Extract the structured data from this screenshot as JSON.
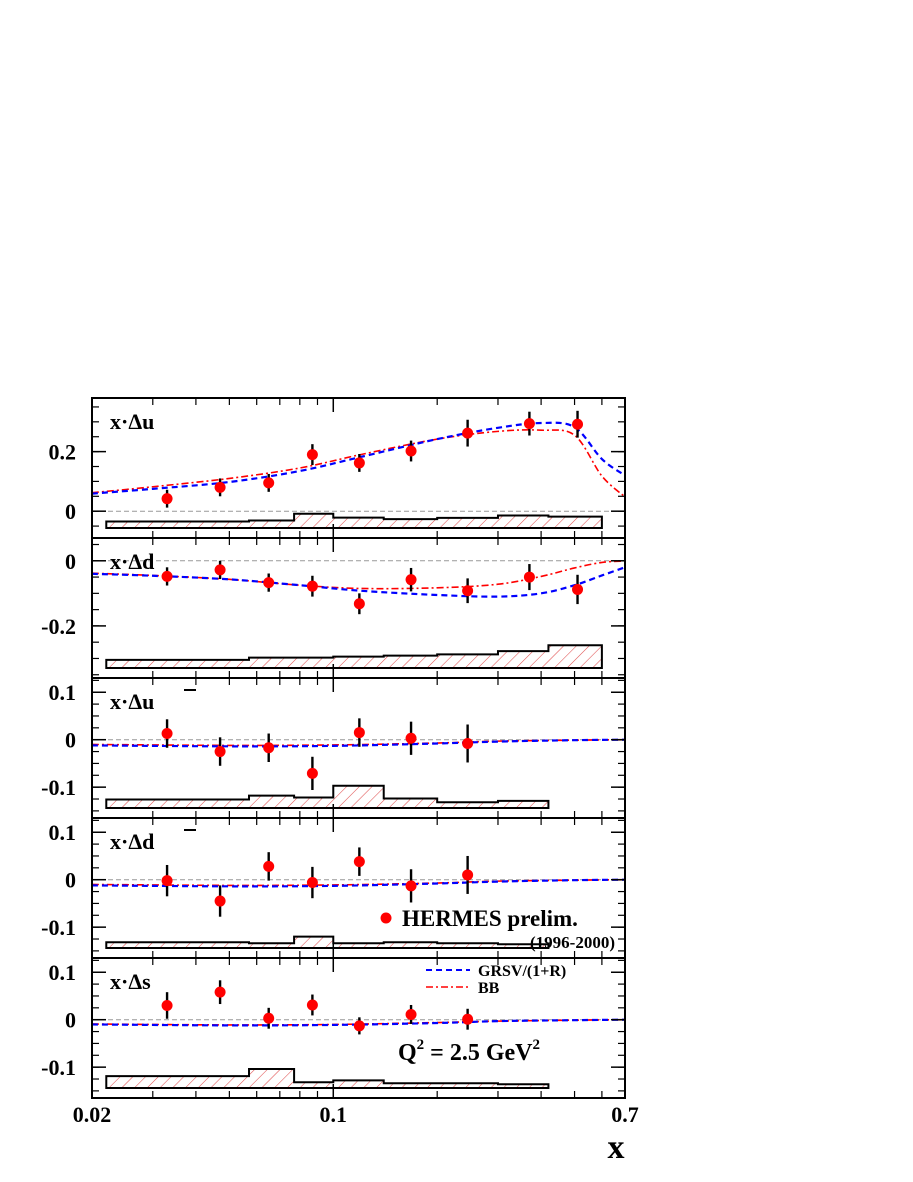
{
  "chart_data": {
    "type": "scatter",
    "xscale": "log",
    "xlim": [
      0.02,
      0.7
    ],
    "xlabel": "x",
    "x_ticks": [
      0.02,
      0.1,
      0.7
    ],
    "x_tick_labels": [
      "0.02",
      "0.1",
      "0.7"
    ],
    "x_points": [
      0.033,
      0.047,
      0.065,
      0.087,
      0.119,
      0.168,
      0.245,
      0.37,
      0.51
    ],
    "colors": {
      "data": "#ff0000",
      "grsv": "#0000ff",
      "bb": "#ff0000",
      "syst_hatch": "#e05050",
      "zero_line": "#999999"
    },
    "legend": {
      "data_label": "HERMES prelim.",
      "data_sublabel": "(1996-2000)",
      "grsv_label": "GRSV/(1+R)",
      "bb_label": "BB"
    },
    "annotation": {
      "q2_base": "Q",
      "q2_exp": "2",
      "q2_rest": " = 2.5 GeV",
      "q2_unit_exp": "2"
    },
    "panels": [
      {
        "label_prefix": "x·Δ",
        "label_flavor": "u",
        "bar": false,
        "ylim": [
          -0.09,
          0.38
        ],
        "y_ticks": [
          0,
          0.2
        ],
        "y_tick_labels": [
          "0",
          "0.2"
        ],
        "points": [
          0.042,
          0.08,
          0.095,
          0.19,
          0.162,
          0.202,
          0.262,
          0.294,
          0.292
        ],
        "errors": [
          0.03,
          0.03,
          0.03,
          0.035,
          0.03,
          0.035,
          0.045,
          0.04,
          0.045
        ],
        "syst_edges": [
          0.022,
          0.04,
          0.057,
          0.077,
          0.1,
          0.14,
          0.2,
          0.3,
          0.42,
          0.6
        ],
        "syst_heights": [
          0.022,
          0.022,
          0.025,
          0.048,
          0.035,
          0.03,
          0.034,
          0.042,
          0.038
        ],
        "grsv": [
          [
            0.02,
            0.059
          ],
          [
            0.03,
            0.075
          ],
          [
            0.05,
            0.098
          ],
          [
            0.08,
            0.135
          ],
          [
            0.12,
            0.182
          ],
          [
            0.2,
            0.242
          ],
          [
            0.3,
            0.28
          ],
          [
            0.4,
            0.296
          ],
          [
            0.5,
            0.282
          ],
          [
            0.6,
            0.175
          ],
          [
            0.7,
            0.12
          ]
        ],
        "bb": [
          [
            0.02,
            0.062
          ],
          [
            0.03,
            0.082
          ],
          [
            0.05,
            0.11
          ],
          [
            0.08,
            0.145
          ],
          [
            0.12,
            0.19
          ],
          [
            0.2,
            0.242
          ],
          [
            0.3,
            0.268
          ],
          [
            0.4,
            0.272
          ],
          [
            0.5,
            0.255
          ],
          [
            0.6,
            0.118
          ],
          [
            0.7,
            0.048
          ]
        ]
      },
      {
        "label_prefix": "x·Δ",
        "label_flavor": "d",
        "bar": false,
        "ylim": [
          -0.36,
          0.07
        ],
        "y_ticks": [
          0,
          -0.2
        ],
        "y_tick_labels": [
          "0",
          "-0.2"
        ],
        "points": [
          -0.048,
          -0.028,
          -0.067,
          -0.078,
          -0.132,
          -0.058,
          -0.092,
          -0.05,
          -0.088
        ],
        "errors": [
          0.028,
          0.028,
          0.028,
          0.032,
          0.032,
          0.036,
          0.038,
          0.04,
          0.045
        ],
        "syst_edges": [
          0.022,
          0.04,
          0.057,
          0.077,
          0.1,
          0.14,
          0.2,
          0.3,
          0.42,
          0.6
        ],
        "syst_heights": [
          0.025,
          0.025,
          0.032,
          0.032,
          0.035,
          0.038,
          0.042,
          0.052,
          0.07
        ],
        "grsv": [
          [
            0.02,
            -0.04
          ],
          [
            0.03,
            -0.046
          ],
          [
            0.05,
            -0.057
          ],
          [
            0.08,
            -0.075
          ],
          [
            0.12,
            -0.092
          ],
          [
            0.2,
            -0.105
          ],
          [
            0.3,
            -0.11
          ],
          [
            0.4,
            -0.1
          ],
          [
            0.5,
            -0.075
          ],
          [
            0.6,
            -0.045
          ],
          [
            0.7,
            -0.02
          ]
        ],
        "bb": [
          [
            0.02,
            -0.038
          ],
          [
            0.03,
            -0.045
          ],
          [
            0.05,
            -0.057
          ],
          [
            0.08,
            -0.075
          ],
          [
            0.12,
            -0.085
          ],
          [
            0.2,
            -0.083
          ],
          [
            0.3,
            -0.072
          ],
          [
            0.4,
            -0.048
          ],
          [
            0.5,
            -0.022
          ],
          [
            0.6,
            -0.005
          ],
          [
            0.7,
            -0.001
          ]
        ]
      },
      {
        "label_prefix": "x·Δ",
        "label_flavor": "u",
        "bar": true,
        "ylim": [
          -0.165,
          0.13
        ],
        "y_ticks": [
          0.1,
          0,
          -0.1
        ],
        "y_tick_labels": [
          "0.1",
          "0",
          "-0.1"
        ],
        "points": [
          0.013,
          -0.025,
          -0.017,
          -0.071,
          0.015,
          0.003,
          -0.008
        ],
        "errors": [
          0.03,
          0.03,
          0.03,
          0.035,
          0.03,
          0.035,
          0.04
        ],
        "syst_edges": [
          0.022,
          0.04,
          0.057,
          0.077,
          0.1,
          0.14,
          0.2,
          0.3,
          0.42
        ],
        "syst_heights": [
          0.018,
          0.018,
          0.026,
          0.022,
          0.047,
          0.02,
          0.012,
          0.015
        ],
        "grsv": [
          [
            0.02,
            -0.012
          ],
          [
            0.05,
            -0.014
          ],
          [
            0.1,
            -0.013
          ],
          [
            0.2,
            -0.008
          ],
          [
            0.3,
            -0.004
          ],
          [
            0.5,
            -0.001
          ],
          [
            0.7,
            0.0
          ]
        ],
        "bb": [
          [
            0.02,
            -0.01
          ],
          [
            0.05,
            -0.012
          ],
          [
            0.1,
            -0.011
          ],
          [
            0.2,
            -0.007
          ],
          [
            0.3,
            -0.003
          ],
          [
            0.5,
            -0.001
          ],
          [
            0.7,
            0.0
          ]
        ]
      },
      {
        "label_prefix": "x·Δ",
        "label_flavor": "d",
        "bar": true,
        "ylim": [
          -0.165,
          0.13
        ],
        "y_ticks": [
          0.1,
          0,
          -0.1
        ],
        "y_tick_labels": [
          "0.1",
          "0",
          "-0.1"
        ],
        "points": [
          -0.002,
          -0.045,
          0.028,
          -0.006,
          0.038,
          -0.013,
          0.01
        ],
        "errors": [
          0.033,
          0.033,
          0.03,
          0.033,
          0.03,
          0.035,
          0.04
        ],
        "syst_edges": [
          0.022,
          0.04,
          0.057,
          0.077,
          0.1,
          0.14,
          0.2,
          0.3,
          0.42
        ],
        "syst_heights": [
          0.012,
          0.012,
          0.01,
          0.024,
          0.01,
          0.012,
          0.01,
          0.008
        ],
        "grsv": [
          [
            0.02,
            -0.012
          ],
          [
            0.05,
            -0.014
          ],
          [
            0.1,
            -0.013
          ],
          [
            0.2,
            -0.008
          ],
          [
            0.3,
            -0.004
          ],
          [
            0.5,
            -0.001
          ],
          [
            0.7,
            0.0
          ]
        ],
        "bb": [
          [
            0.02,
            -0.01
          ],
          [
            0.05,
            -0.012
          ],
          [
            0.1,
            -0.011
          ],
          [
            0.2,
            -0.007
          ],
          [
            0.3,
            -0.003
          ],
          [
            0.5,
            -0.001
          ],
          [
            0.7,
            0.0
          ]
        ]
      },
      {
        "label_prefix": "x·Δ",
        "label_flavor": "s",
        "bar": false,
        "ylim": [
          -0.165,
          0.13
        ],
        "y_ticks": [
          0.1,
          0,
          -0.1
        ],
        "y_tick_labels": [
          "0.1",
          "0",
          "-0.1"
        ],
        "points": [
          0.03,
          0.058,
          0.003,
          0.031,
          -0.013,
          0.011,
          0.001
        ],
        "errors": [
          0.028,
          0.025,
          0.022,
          0.022,
          0.018,
          0.02,
          0.022
        ],
        "syst_edges": [
          0.022,
          0.04,
          0.057,
          0.077,
          0.1,
          0.14,
          0.2,
          0.3,
          0.42
        ],
        "syst_heights": [
          0.025,
          0.025,
          0.04,
          0.012,
          0.016,
          0.01,
          0.01,
          0.008
        ],
        "grsv": [
          [
            0.02,
            -0.01
          ],
          [
            0.05,
            -0.012
          ],
          [
            0.1,
            -0.011
          ],
          [
            0.2,
            -0.007
          ],
          [
            0.3,
            -0.003
          ],
          [
            0.5,
            -0.001
          ],
          [
            0.7,
            0.0
          ]
        ],
        "bb": [
          [
            0.02,
            -0.009
          ],
          [
            0.05,
            -0.011
          ],
          [
            0.1,
            -0.01
          ],
          [
            0.2,
            -0.006
          ],
          [
            0.3,
            -0.003
          ],
          [
            0.5,
            -0.001
          ],
          [
            0.7,
            0.0
          ]
        ]
      }
    ]
  }
}
